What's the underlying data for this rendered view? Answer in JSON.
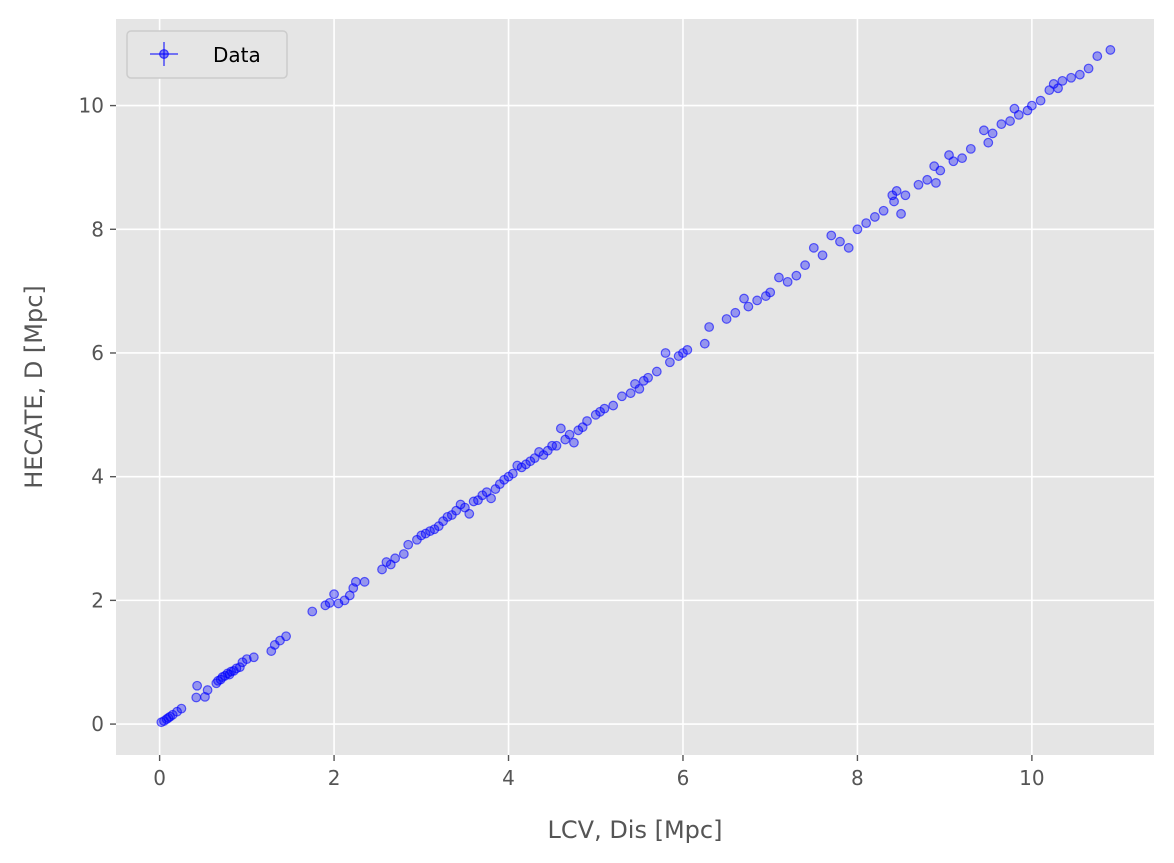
{
  "chart_data": {
    "type": "scatter",
    "title": "",
    "xlabel": "LCV, Dis [Mpc]",
    "ylabel": "HECATE, D [Mpc]",
    "xlim": [
      -0.5,
      11.4
    ],
    "ylim": [
      -0.5,
      11.4
    ],
    "xticks": [
      "0",
      "2",
      "4",
      "6",
      "8",
      "10"
    ],
    "yticks": [
      "0",
      "2",
      "4",
      "6",
      "8",
      "10"
    ],
    "xtick_values": [
      0,
      2,
      4,
      6,
      8,
      10
    ],
    "ytick_values": [
      0,
      2,
      4,
      6,
      8,
      10
    ],
    "grid": true,
    "legend_position": "top-left",
    "series": [
      {
        "name": "Data",
        "color": "#0000ff",
        "points": [
          [
            0.02,
            0.03
          ],
          [
            0.05,
            0.05
          ],
          [
            0.08,
            0.08
          ],
          [
            0.1,
            0.1
          ],
          [
            0.12,
            0.12
          ],
          [
            0.15,
            0.15
          ],
          [
            0.2,
            0.2
          ],
          [
            0.25,
            0.25
          ],
          [
            0.42,
            0.43
          ],
          [
            0.43,
            0.62
          ],
          [
            0.52,
            0.44
          ],
          [
            0.55,
            0.55
          ],
          [
            0.65,
            0.66
          ],
          [
            0.67,
            0.7
          ],
          [
            0.7,
            0.72
          ],
          [
            0.72,
            0.76
          ],
          [
            0.75,
            0.78
          ],
          [
            0.78,
            0.82
          ],
          [
            0.8,
            0.8
          ],
          [
            0.82,
            0.85
          ],
          [
            0.85,
            0.86
          ],
          [
            0.88,
            0.9
          ],
          [
            0.92,
            0.92
          ],
          [
            0.95,
            1.0
          ],
          [
            1.0,
            1.05
          ],
          [
            1.08,
            1.08
          ],
          [
            1.28,
            1.18
          ],
          [
            1.32,
            1.28
          ],
          [
            1.38,
            1.35
          ],
          [
            1.45,
            1.42
          ],
          [
            1.75,
            1.82
          ],
          [
            1.9,
            1.92
          ],
          [
            1.95,
            1.96
          ],
          [
            2.0,
            2.1
          ],
          [
            2.05,
            1.95
          ],
          [
            2.12,
            2.0
          ],
          [
            2.18,
            2.08
          ],
          [
            2.22,
            2.2
          ],
          [
            2.25,
            2.3
          ],
          [
            2.35,
            2.3
          ],
          [
            2.55,
            2.5
          ],
          [
            2.6,
            2.62
          ],
          [
            2.65,
            2.58
          ],
          [
            2.7,
            2.68
          ],
          [
            2.8,
            2.75
          ],
          [
            2.85,
            2.9
          ],
          [
            2.95,
            2.98
          ],
          [
            3.0,
            3.05
          ],
          [
            3.05,
            3.08
          ],
          [
            3.1,
            3.12
          ],
          [
            3.15,
            3.15
          ],
          [
            3.2,
            3.2
          ],
          [
            3.25,
            3.28
          ],
          [
            3.3,
            3.35
          ],
          [
            3.35,
            3.38
          ],
          [
            3.4,
            3.45
          ],
          [
            3.45,
            3.55
          ],
          [
            3.5,
            3.5
          ],
          [
            3.55,
            3.4
          ],
          [
            3.6,
            3.6
          ],
          [
            3.65,
            3.62
          ],
          [
            3.7,
            3.7
          ],
          [
            3.75,
            3.75
          ],
          [
            3.8,
            3.65
          ],
          [
            3.85,
            3.8
          ],
          [
            3.9,
            3.88
          ],
          [
            3.95,
            3.95
          ],
          [
            4.0,
            4.0
          ],
          [
            4.05,
            4.05
          ],
          [
            4.1,
            4.18
          ],
          [
            4.15,
            4.15
          ],
          [
            4.2,
            4.2
          ],
          [
            4.25,
            4.25
          ],
          [
            4.3,
            4.3
          ],
          [
            4.35,
            4.4
          ],
          [
            4.4,
            4.35
          ],
          [
            4.45,
            4.42
          ],
          [
            4.5,
            4.5
          ],
          [
            4.55,
            4.5
          ],
          [
            4.6,
            4.78
          ],
          [
            4.65,
            4.6
          ],
          [
            4.7,
            4.68
          ],
          [
            4.75,
            4.55
          ],
          [
            4.8,
            4.75
          ],
          [
            4.85,
            4.8
          ],
          [
            4.9,
            4.9
          ],
          [
            5.0,
            5.0
          ],
          [
            5.05,
            5.05
          ],
          [
            5.1,
            5.1
          ],
          [
            5.2,
            5.15
          ],
          [
            5.3,
            5.3
          ],
          [
            5.4,
            5.35
          ],
          [
            5.45,
            5.5
          ],
          [
            5.5,
            5.42
          ],
          [
            5.55,
            5.55
          ],
          [
            5.6,
            5.6
          ],
          [
            5.7,
            5.7
          ],
          [
            5.8,
            6.0
          ],
          [
            5.85,
            5.85
          ],
          [
            5.95,
            5.95
          ],
          [
            6.0,
            6.0
          ],
          [
            6.05,
            6.05
          ],
          [
            6.25,
            6.15
          ],
          [
            6.3,
            6.42
          ],
          [
            6.5,
            6.55
          ],
          [
            6.6,
            6.65
          ],
          [
            6.7,
            6.88
          ],
          [
            6.75,
            6.75
          ],
          [
            6.85,
            6.85
          ],
          [
            6.95,
            6.92
          ],
          [
            7.0,
            6.98
          ],
          [
            7.1,
            7.22
          ],
          [
            7.2,
            7.15
          ],
          [
            7.3,
            7.25
          ],
          [
            7.4,
            7.42
          ],
          [
            7.5,
            7.7
          ],
          [
            7.6,
            7.58
          ],
          [
            7.7,
            7.9
          ],
          [
            7.8,
            7.8
          ],
          [
            7.9,
            7.7
          ],
          [
            8.0,
            8.0
          ],
          [
            8.1,
            8.1
          ],
          [
            8.2,
            8.2
          ],
          [
            8.3,
            8.3
          ],
          [
            8.4,
            8.55
          ],
          [
            8.42,
            8.45
          ],
          [
            8.45,
            8.62
          ],
          [
            8.5,
            8.25
          ],
          [
            8.55,
            8.55
          ],
          [
            8.7,
            8.72
          ],
          [
            8.8,
            8.8
          ],
          [
            8.88,
            9.02
          ],
          [
            8.9,
            8.75
          ],
          [
            8.95,
            8.95
          ],
          [
            9.05,
            9.2
          ],
          [
            9.1,
            9.1
          ],
          [
            9.2,
            9.15
          ],
          [
            9.3,
            9.3
          ],
          [
            9.45,
            9.6
          ],
          [
            9.5,
            9.4
          ],
          [
            9.55,
            9.55
          ],
          [
            9.65,
            9.7
          ],
          [
            9.75,
            9.75
          ],
          [
            9.8,
            9.95
          ],
          [
            9.85,
            9.85
          ],
          [
            9.95,
            9.92
          ],
          [
            10.0,
            10.0
          ],
          [
            10.1,
            10.08
          ],
          [
            10.2,
            10.25
          ],
          [
            10.25,
            10.35
          ],
          [
            10.3,
            10.28
          ],
          [
            10.35,
            10.4
          ],
          [
            10.45,
            10.45
          ],
          [
            10.55,
            10.5
          ],
          [
            10.65,
            10.6
          ],
          [
            10.75,
            10.8
          ],
          [
            10.9,
            10.9
          ]
        ]
      }
    ]
  }
}
